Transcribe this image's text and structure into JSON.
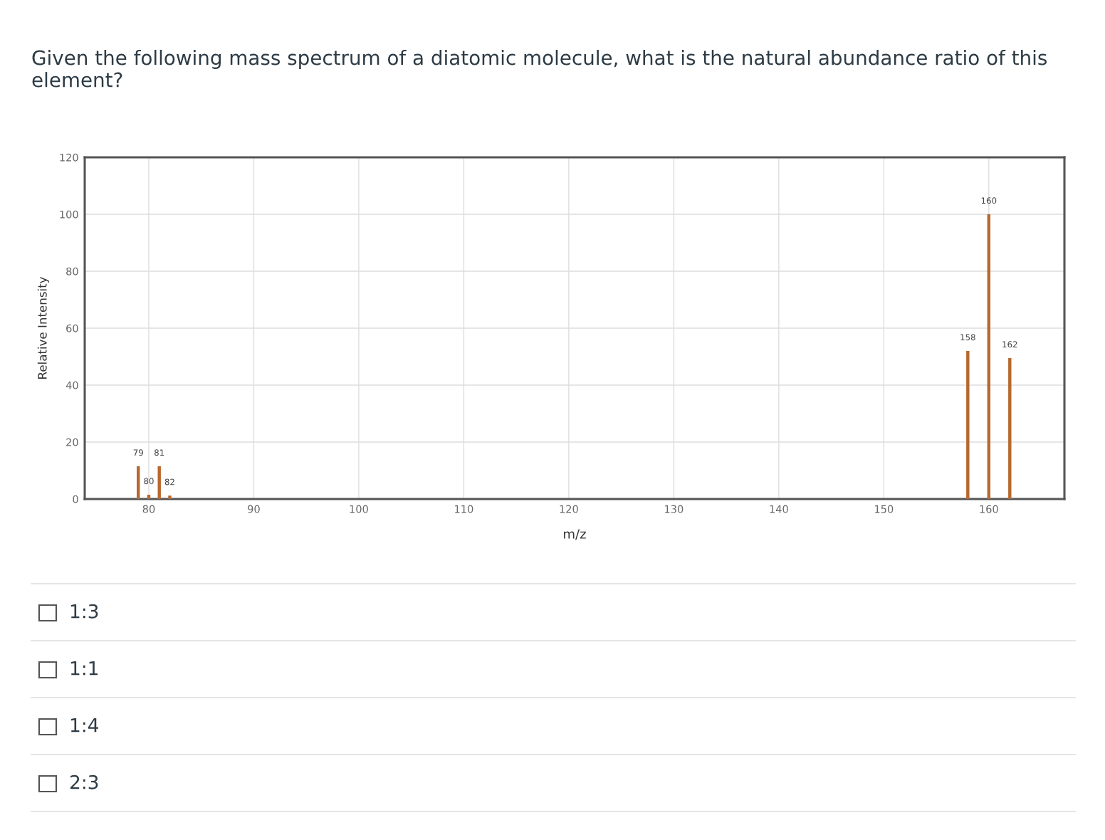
{
  "chart_data": {
    "type": "bar",
    "title": "Given the following mass spectrum of a diatomic molecule, what is the natural abundance ratio of this element?",
    "xlabel": "m/z",
    "ylabel": "Relative Intensity",
    "x": [
      79,
      80,
      81,
      82,
      158,
      160,
      162
    ],
    "values": [
      11.5,
      1.5,
      11.5,
      1.2,
      52,
      100,
      49.5
    ],
    "color": "#b8682e",
    "xlim": [
      73.9,
      167.2
    ],
    "xticks": [
      80,
      90,
      100,
      110,
      120,
      130,
      140,
      150,
      160
    ],
    "ylim": [
      0,
      120
    ],
    "yticks": [
      0,
      20,
      40,
      60,
      80,
      100,
      120
    ],
    "grid": true,
    "annotations": [
      {
        "text": "79",
        "x": 79,
        "y": 11.5
      },
      {
        "text": "80",
        "x": 80,
        "y": 1.5
      },
      {
        "text": "81",
        "x": 81,
        "y": 11.5
      },
      {
        "text": "82",
        "x": 82,
        "y": 1.2
      },
      {
        "text": "158",
        "x": 158,
        "y": 52
      },
      {
        "text": "160",
        "x": 160,
        "y": 100
      },
      {
        "text": "162",
        "x": 162,
        "y": 49.5
      },
      "1:3",
      "1:1",
      "1:4",
      "2:3"
    ]
  }
}
